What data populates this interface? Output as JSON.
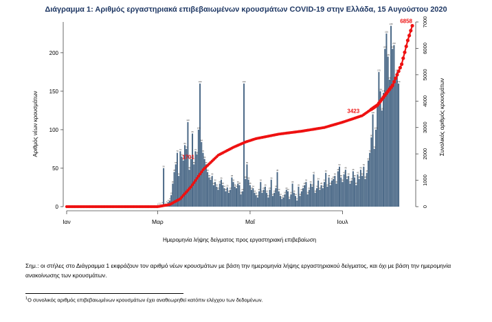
{
  "title": "Διάγραμμα 1: Αριθμός εργαστηριακά επιβεβαιωμένων κρουσμάτων COVID-19 στην Ελλάδα, 15 Αυγούστου 2020",
  "note": "Σημ.: οι στήλες στο Διάγραμμα 1 εκφράζουν τον αριθμό νέων κρουσμάτων με βάση την ημερομηνία λήψης εργαστηριακού δείγματος, και όχι με βάση την ημερομηνία ανακοίνωσης των κρουσμάτων.",
  "footnote": {
    "mark": "1",
    "text": "Ο συνολικός αριθμός επιβεβαιωμένων κρουσμάτων έχει αναθεωρηθεί κατόπιν ελέγχου των δεδομένων."
  },
  "colors": {
    "bars": "#4c6a88",
    "cumulative": "#ee1111",
    "title": "#1f3864"
  },
  "chart_data": {
    "type": "bar",
    "xlabel": "Ημερομηνία λήψης δείγματος προς εργαστηριακή επιβεβαίωση",
    "ylabel": "Αριθμός νέων κρουσμάτων",
    "y2label": "Συνολικός αριθμός κρουσμάτων",
    "ylim": [
      0,
      240
    ],
    "y2lim": [
      0,
      7000
    ],
    "yticks": [
      0,
      50,
      100,
      150,
      200
    ],
    "y2ticks": [
      0,
      1000,
      2000,
      3000,
      4000,
      5000,
      6000,
      7000
    ],
    "xlim_days": [
      0,
      228
    ],
    "month_ticks": [
      {
        "label": "Ιαν",
        "day": 0
      },
      {
        "label": "Μαρ",
        "day": 60
      },
      {
        "label": "Μαΐ",
        "day": 121
      },
      {
        "label": "Ιουλ",
        "day": 182
      }
    ],
    "series": [
      {
        "chart_type": "bar",
        "start": "2020-01-08",
        "values": [
          0,
          0,
          0,
          0,
          0,
          0,
          0,
          0,
          0,
          0,
          0,
          0,
          0,
          0,
          0,
          0,
          0,
          0,
          0,
          0,
          0,
          0,
          0,
          0,
          0,
          0,
          0,
          0,
          0,
          0,
          0,
          0,
          0,
          0,
          0,
          0,
          0,
          0,
          0,
          0,
          0,
          0,
          0,
          0,
          0,
          0,
          0,
          0,
          0,
          0,
          0,
          0,
          0,
          0,
          0,
          0,
          0,
          0,
          0,
          0,
          1,
          2,
          2,
          3,
          50,
          2,
          4,
          6,
          8,
          15,
          30,
          45,
          55,
          70,
          40,
          72,
          65,
          60,
          80,
          75,
          110,
          48,
          62,
          95,
          55,
          72,
          68,
          100,
          160,
          84,
          70,
          62,
          55,
          45,
          38,
          35,
          40,
          28,
          32,
          26,
          22,
          30,
          35,
          28,
          24,
          20,
          25,
          18,
          22,
          38,
          32,
          26,
          24,
          30,
          28,
          16,
          20,
          160,
          36,
          55,
          35,
          28,
          22,
          24,
          18,
          15,
          12,
          20,
          32,
          18,
          22,
          26,
          18,
          12,
          22,
          35,
          14,
          18,
          24,
          45,
          20,
          14,
          10,
          12,
          16,
          22,
          20,
          10,
          16,
          30,
          18,
          14,
          8,
          26,
          14,
          20,
          24,
          28,
          32,
          16,
          22,
          30,
          26,
          42,
          18,
          24,
          34,
          22,
          28,
          24,
          32,
          44,
          26,
          38,
          28,
          34,
          36,
          40,
          30,
          46,
          52,
          38,
          32,
          42,
          48,
          36,
          40,
          30,
          34,
          46,
          38,
          28,
          42,
          36,
          48,
          40,
          52,
          36,
          44,
          60,
          70,
          90,
          120,
          75,
          100,
          130,
          175,
          150,
          125,
          148,
          205,
          225,
          195,
          165,
          235,
          205,
          210,
          165,
          175,
          160
        ]
      },
      {
        "chart_type": "line",
        "name": "cumulative",
        "start": "2020-01-08",
        "points": [
          [
            0,
            0
          ],
          [
            60,
            0
          ],
          [
            68,
            80
          ],
          [
            75,
            300
          ],
          [
            82,
            750
          ],
          [
            90,
            1400
          ],
          [
            100,
            1950
          ],
          [
            110,
            2250
          ],
          [
            118,
            2450
          ],
          [
            125,
            2580
          ],
          [
            140,
            2750
          ],
          [
            155,
            2860
          ],
          [
            170,
            3000
          ],
          [
            182,
            3200
          ],
          [
            195,
            3450
          ],
          [
            205,
            3850
          ],
          [
            215,
            4600
          ],
          [
            221,
            5400
          ],
          [
            225,
            6300
          ],
          [
            228,
            6858
          ]
        ]
      }
    ],
    "annotations": [
      {
        "label": "6858",
        "day": 228,
        "value": 6858
      },
      {
        "label": "3423",
        "day": 195,
        "value": 3423
      },
      {
        "label": "1701",
        "day": 87,
        "value": 1701
      }
    ]
  }
}
